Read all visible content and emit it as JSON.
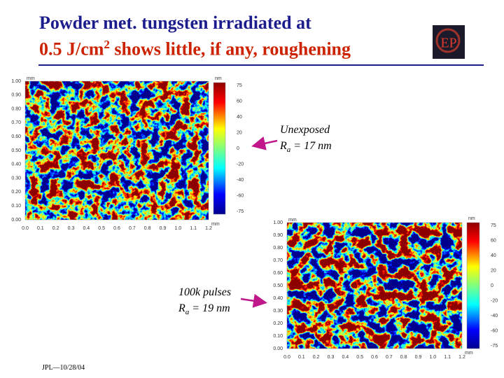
{
  "header": {
    "title_line1": "Powder met. tungsten irradiated at",
    "title_line2_a": "0.5 J/cm",
    "title_line2_sup": "2",
    "title_line2_b": "shows little, if any, roughening"
  },
  "logo": "EP",
  "images": [
    {
      "label": "Unexposed",
      "ra_symbol": "R",
      "ra_sub": "a",
      "ra_value": "= 17 nm",
      "x_unit": "mm",
      "y_unit": "mm",
      "colorbar_unit": "nm",
      "xticks": [
        "0.0",
        "0.1",
        "0.2",
        "0.3",
        "0.4",
        "0.5",
        "0.6",
        "0.7",
        "0.8",
        "0.9",
        "1.0",
        "1.1",
        "1.2"
      ],
      "yticks": [
        "1.00",
        "0.90",
        "0.80",
        "0.70",
        "0.60",
        "0.50",
        "0.40",
        "0.30",
        "0.20",
        "0.10",
        "0.00"
      ],
      "colorbar_ticks": [
        "75",
        "60",
        "40",
        "20",
        "0",
        "-20",
        "-40",
        "-60",
        "-75"
      ]
    },
    {
      "label": "100k pulses",
      "ra_symbol": "R",
      "ra_sub": "a",
      "ra_value": "= 19 nm",
      "x_unit": "mm",
      "y_unit": "mm",
      "colorbar_unit": "nm",
      "xticks": [
        "0.0",
        "0.1",
        "0.2",
        "0.3",
        "0.4",
        "0.5",
        "0.6",
        "0.7",
        "0.8",
        "0.9",
        "1.0",
        "1.1",
        "1.2"
      ],
      "yticks": [
        "1.00",
        "0.90",
        "0.80",
        "0.70",
        "0.60",
        "0.50",
        "0.40",
        "0.30",
        "0.20",
        "0.10",
        "0.00"
      ],
      "colorbar_ticks": [
        "75",
        "60",
        "40",
        "20",
        "0",
        "-20",
        "-40",
        "-60",
        "-75"
      ]
    }
  ],
  "footer": "JPL—10/28/04"
}
